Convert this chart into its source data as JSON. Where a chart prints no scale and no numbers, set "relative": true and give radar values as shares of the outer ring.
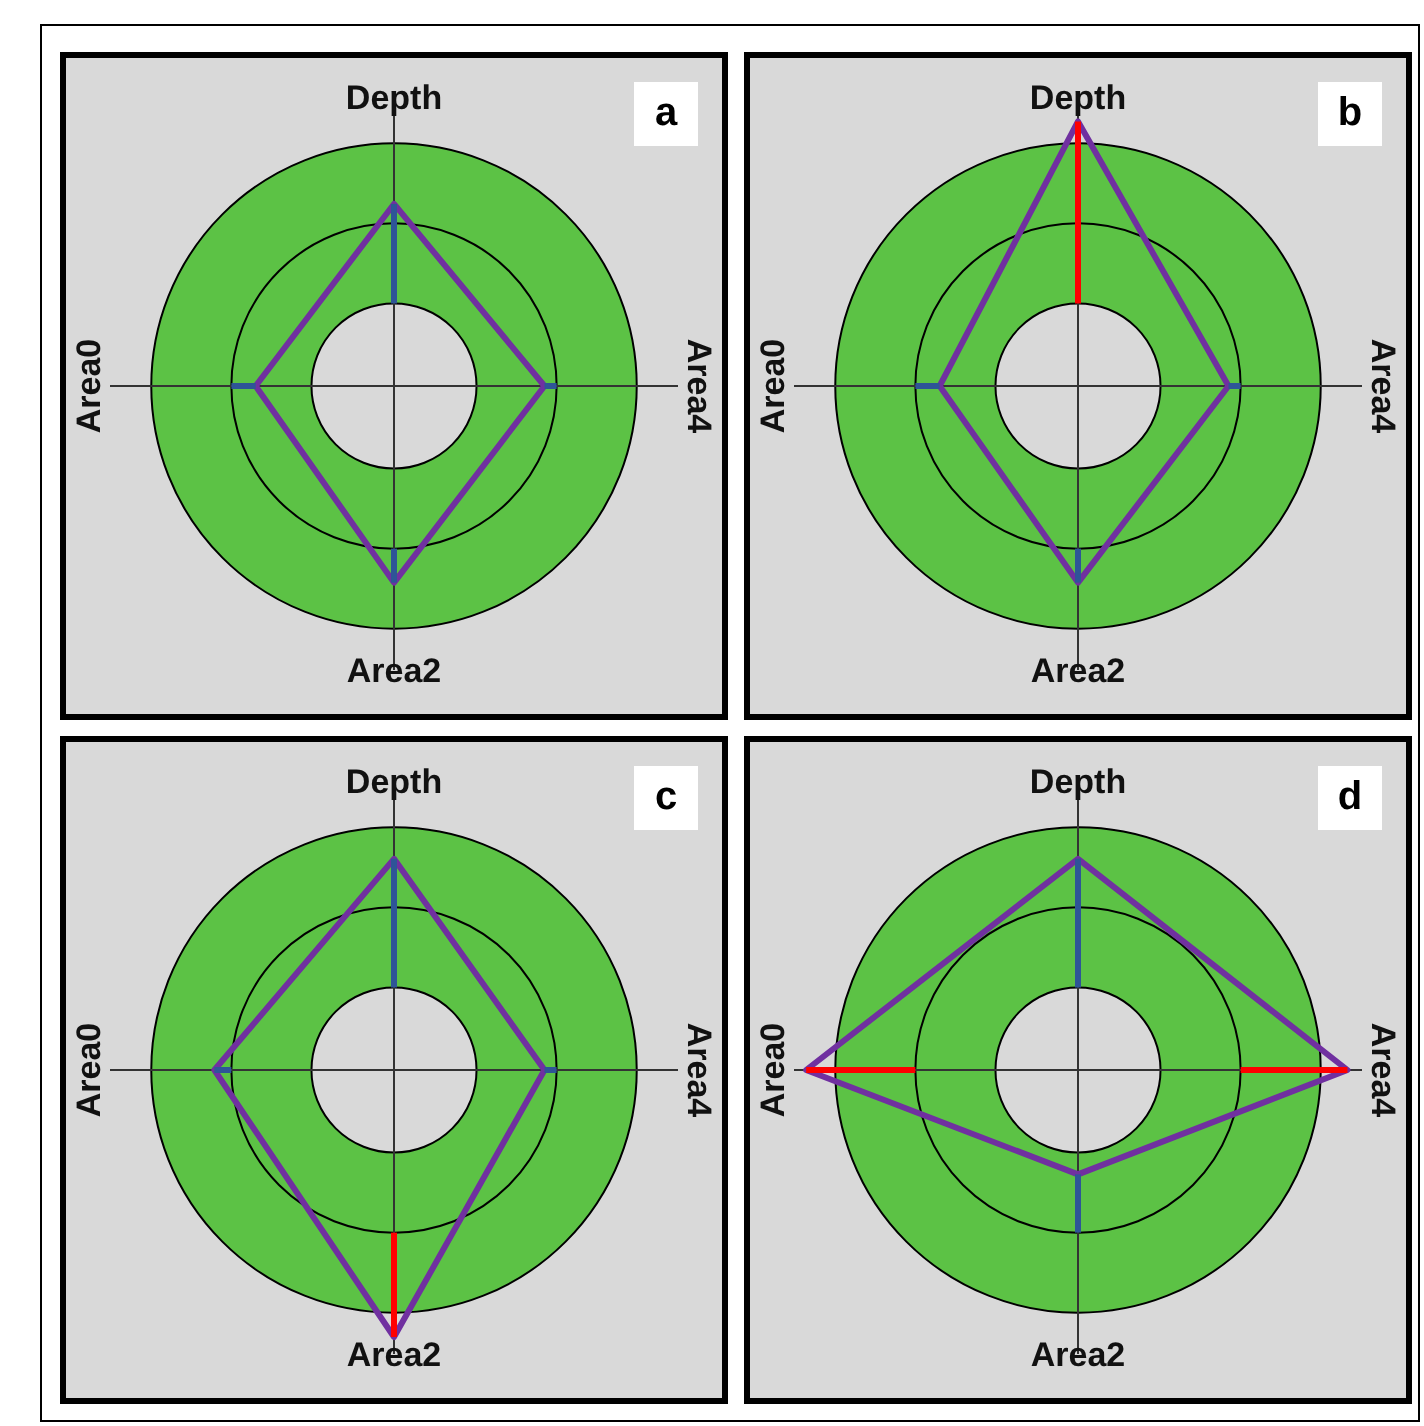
{
  "chart_data": [
    {
      "type": "radar",
      "title": "a",
      "relative": true,
      "categories": [
        "Depth",
        "Area4",
        "Area2",
        "Area0"
      ],
      "series": [
        {
          "values": [
            0.75,
            0.62,
            0.81,
            0.57
          ],
          "color": "#7030a0",
          "colors": [
            "#2e5597",
            "#2e5597",
            "#2e5597",
            "#2e5597"
          ]
        }
      ]
    },
    {
      "type": "radar",
      "title": "b",
      "relative": true,
      "categories": [
        "Depth",
        "Area4",
        "Area2",
        "Area0"
      ],
      "series": [
        {
          "values": [
            1.09,
            0.62,
            0.81,
            0.57
          ],
          "color": "#7030a0",
          "colors": [
            "#ff0000",
            "#2e5597",
            "#2e5597",
            "#2e5597"
          ]
        }
      ]
    },
    {
      "type": "radar",
      "title": "c",
      "relative": true,
      "categories": [
        "Depth",
        "Area4",
        "Area2",
        "Area0"
      ],
      "series": [
        {
          "values": [
            0.87,
            0.62,
            1.1,
            0.74
          ],
          "color": "#7030a0",
          "colors": [
            "#2e5597",
            "#2e5597",
            "#ff0000",
            "#2e5597"
          ]
        }
      ]
    },
    {
      "type": "radar",
      "title": "d",
      "relative": true,
      "categories": [
        "Depth",
        "Area4",
        "Area2",
        "Area0"
      ],
      "series": [
        {
          "values": [
            0.87,
            1.11,
            0.43,
            1.12
          ],
          "color": "#7030a0",
          "colors": [
            "#2e5597",
            "#ff0000",
            "#2e5597",
            "#ff0000"
          ]
        }
      ]
    }
  ]
}
